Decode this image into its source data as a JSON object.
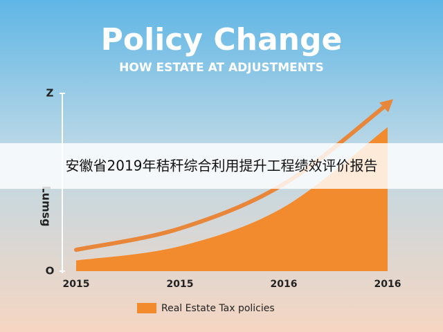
{
  "chart_data": {
    "type": "area",
    "title": "Policy Change",
    "subtitle": "HOW ESTATE AT ADJUSTMENTS",
    "y_label": "Lumsg",
    "categories": [
      "2015",
      "2015",
      "2016",
      "2016"
    ],
    "series": [
      {
        "name": "Real Estate Tax policies",
        "color": "#f28a2e",
        "values": [
          6,
          14,
          36,
          81
        ]
      },
      {
        "color": "#e8863a",
        "values": [
          12,
          24,
          49,
          94
        ]
      }
    ],
    "ylim": [
      0,
      100
    ],
    "yticks": [
      {
        "value": 0,
        "label": "O"
      },
      {
        "value": 100,
        "label": "Z"
      }
    ]
  },
  "banner": {
    "text": "安徽省2019年秸秆综合利用提升工程绩效评价报告"
  }
}
